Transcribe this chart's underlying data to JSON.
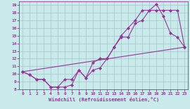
{
  "xlabel": "Windchill (Refroidissement éolien,°C)",
  "bg_color": "#c8eaea",
  "line_color": "#993399",
  "grid_color": "#aacccc",
  "xlim": [
    -0.5,
    23.5
  ],
  "ylim": [
    8,
    19.5
  ],
  "xticks": [
    0,
    1,
    2,
    3,
    4,
    5,
    6,
    7,
    8,
    9,
    10,
    11,
    12,
    13,
    14,
    15,
    16,
    17,
    18,
    19,
    20,
    21,
    22,
    23
  ],
  "yticks": [
    8,
    9,
    10,
    11,
    12,
    13,
    14,
    15,
    16,
    17,
    18,
    19
  ],
  "series1_x": [
    0,
    1,
    2,
    3,
    4,
    5,
    6,
    7,
    8,
    9,
    10,
    11,
    12,
    13,
    14,
    15,
    16,
    17,
    18,
    19,
    20,
    21,
    22,
    23
  ],
  "series1_y": [
    10.3,
    9.9,
    9.3,
    9.3,
    8.3,
    8.3,
    8.3,
    8.6,
    10.5,
    9.5,
    10.5,
    10.8,
    12.0,
    13.5,
    14.8,
    14.8,
    16.6,
    17.0,
    18.3,
    19.1,
    17.5,
    15.3,
    14.8,
    13.5
  ],
  "series2_x": [
    0,
    1,
    2,
    3,
    4,
    5,
    6,
    7,
    8,
    9,
    10,
    11,
    12,
    13,
    14,
    15,
    16,
    17,
    18,
    19,
    20,
    21,
    22,
    23
  ],
  "series2_y": [
    10.3,
    9.9,
    9.3,
    9.3,
    8.3,
    8.3,
    9.3,
    9.3,
    10.5,
    9.5,
    11.5,
    12.0,
    12.0,
    13.5,
    15.0,
    16.0,
    17.0,
    18.3,
    18.3,
    18.3,
    18.3,
    18.3,
    18.3,
    13.5
  ],
  "series3_x": [
    0,
    23
  ],
  "series3_y": [
    10.3,
    13.5
  ]
}
